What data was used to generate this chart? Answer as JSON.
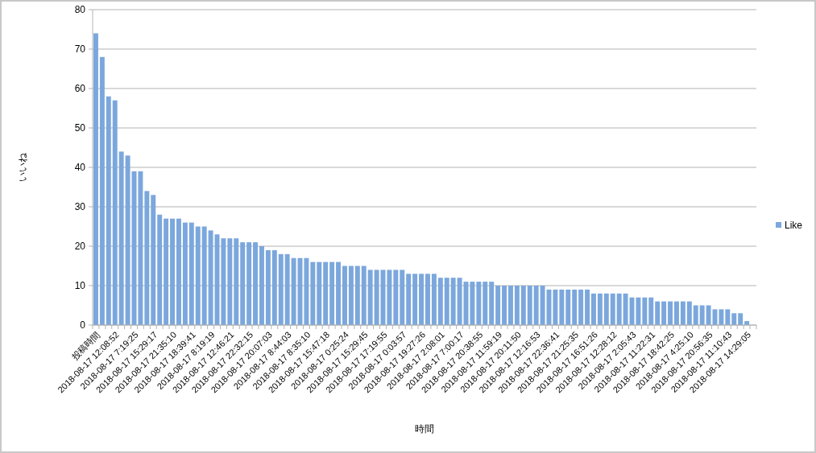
{
  "chart_data": {
    "type": "bar",
    "xlabel": "時間",
    "ylabel": "いいね",
    "categories": [
      "投稿時間",
      null,
      null,
      "2018-08-17 12:08:52",
      null,
      null,
      "2018-08-17 7:19:25",
      null,
      null,
      "2018-08-17 15:29:17",
      null,
      null,
      "2018-08-17 21:35:10",
      null,
      null,
      "2018-08-17 18:39:41",
      null,
      null,
      "2018-08-17 8:19:19",
      null,
      null,
      "2018-08-17 12:46:21",
      null,
      null,
      "2018-08-17 22:32:15",
      null,
      null,
      "2018-08-17 20:07:03",
      null,
      null,
      "2018-08-17 8:44:03",
      null,
      null,
      "2018-08-17 8:35:10",
      null,
      null,
      "2018-08-17 15:47:18",
      null,
      null,
      "2018-08-17 0:25:24",
      null,
      null,
      "2018-08-17 15:29:45",
      null,
      null,
      "2018-08-17 17:19:55",
      null,
      null,
      "2018-08-17 0:03:57",
      null,
      null,
      "2018-08-17 19:27:26",
      null,
      null,
      "2018-08-17 2:08:01",
      null,
      null,
      "2018-08-17 7:00:17",
      null,
      null,
      "2018-08-17 20:38:55",
      null,
      null,
      "2018-08-17 11:59:19",
      null,
      null,
      "2018-08-17 20:11:50",
      null,
      null,
      "2018-08-17 12:16:53",
      null,
      null,
      "2018-08-17 22:36:41",
      null,
      null,
      "2018-08-17 21:25:35",
      null,
      null,
      "2018-08-17 16:51:26",
      null,
      null,
      "2018-08-17 12:28:12",
      null,
      null,
      "2018-08-17 2:05:43",
      null,
      null,
      "2018-08-17 11:22:31",
      null,
      null,
      "2018-08-17 18:42:25",
      null,
      null,
      "2018-08-17 4:25:10",
      null,
      null,
      "2018-08-17 20:56:35",
      null,
      null,
      "2018-08-17 11:10:43",
      null,
      null,
      "2018-08-17 14:29:05",
      null
    ],
    "series": [
      {
        "name": "Like",
        "color": "#7ba7dc",
        "values": [
          74,
          68,
          58,
          57,
          44,
          43,
          39,
          39,
          34,
          33,
          28,
          27,
          27,
          27,
          26,
          26,
          25,
          25,
          24,
          23,
          22,
          22,
          22,
          21,
          21,
          21,
          20,
          19,
          19,
          18,
          18,
          17,
          17,
          17,
          16,
          16,
          16,
          16,
          16,
          15,
          15,
          15,
          15,
          14,
          14,
          14,
          14,
          14,
          14,
          13,
          13,
          13,
          13,
          13,
          12,
          12,
          12,
          12,
          11,
          11,
          11,
          11,
          11,
          10,
          10,
          10,
          10,
          10,
          10,
          10,
          10,
          9,
          9,
          9,
          9,
          9,
          9,
          9,
          8,
          8,
          8,
          8,
          8,
          8,
          7,
          7,
          7,
          7,
          6,
          6,
          6,
          6,
          6,
          6,
          5,
          5,
          5,
          4,
          4,
          4,
          3,
          3,
          1,
          null
        ]
      }
    ],
    "ylim": [
      0,
      80
    ],
    "yticks": [
      0,
      10,
      20,
      30,
      40,
      50,
      60,
      70,
      80
    ],
    "grid": "y",
    "legend": "right"
  }
}
